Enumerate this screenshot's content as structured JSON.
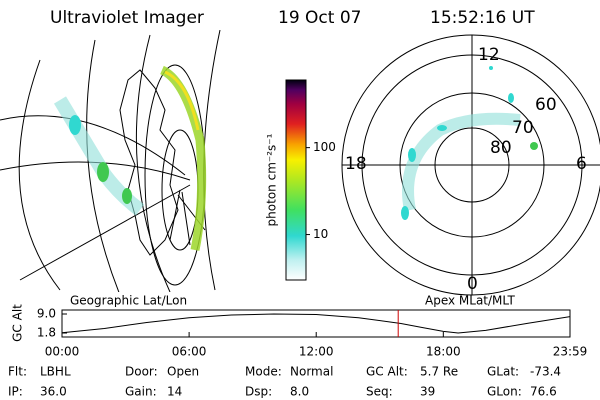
{
  "header": {
    "instrument": "Ultraviolet Imager",
    "date": "19 Oct 07",
    "time": "15:52:16 UT"
  },
  "colorbar": {
    "label": "photon cm⁻²s⁻¹",
    "log_scale": true,
    "lim": [
      3,
      600
    ],
    "ticks": [
      10,
      100
    ]
  },
  "polar_plot": {
    "mlt_labels": [
      "12",
      "18",
      "6",
      "0"
    ],
    "lat_labels": [
      "60",
      "70",
      "80"
    ],
    "caption": "Apex MLat/MLT"
  },
  "map_caption": "Geographic Lat/Lon",
  "chart_data": {
    "type": "line",
    "ylabel": "GC Alt",
    "x": [
      0,
      2,
      4,
      6,
      8,
      10,
      12,
      14,
      16,
      17,
      18,
      18.7,
      20,
      22,
      23.98
    ],
    "values": [
      1.9,
      3.5,
      5.8,
      7.6,
      8.6,
      9.0,
      8.8,
      7.6,
      5.4,
      3.9,
      2.4,
      1.8,
      2.8,
      5.5,
      8.0
    ],
    "color": "#000000",
    "marker_x": 15.87,
    "marker_color": "#cc0000",
    "xlim": [
      0,
      23.98
    ],
    "ylim": [
      1.8,
      9.0
    ],
    "xticks": [
      {
        "value": 0,
        "label": "00:00"
      },
      {
        "value": 6,
        "label": "06:00"
      },
      {
        "value": 12,
        "label": "12:00"
      },
      {
        "value": 18,
        "label": "18:00"
      },
      {
        "value": 23.98,
        "label": "23:59"
      }
    ],
    "yticks": [
      {
        "value": 9.0,
        "label": "9.0"
      },
      {
        "value": 1.8,
        "label": "1.8"
      }
    ]
  },
  "status": [
    [
      {
        "label": "Flt:",
        "value": "LBHL"
      },
      {
        "label": "Door:",
        "value": "Open"
      },
      {
        "label": "Mode:",
        "value": "Normal"
      },
      {
        "label": "GC Alt:",
        "value": "5.7 Re"
      },
      {
        "label": "GLat:",
        "value": "-73.4"
      }
    ],
    [
      {
        "label": "IP:",
        "value": "36.0"
      },
      {
        "label": "Gain:",
        "value": "14"
      },
      {
        "label": "Dsp:",
        "value": "8.0"
      },
      {
        "label": "Seq:",
        "value": "39"
      },
      {
        "label": "GLon:",
        "value": "76.6"
      }
    ]
  ]
}
